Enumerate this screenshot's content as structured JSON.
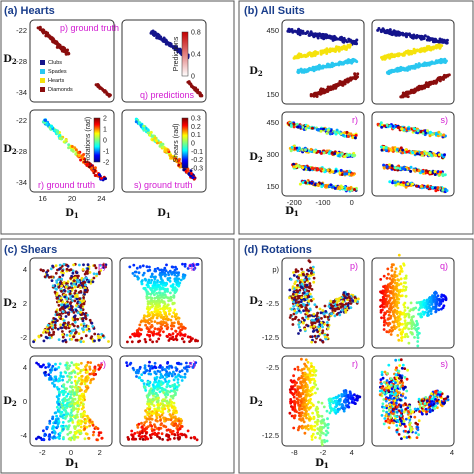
{
  "figure": {
    "colors": {
      "clubs": "#14148c",
      "spades": "#29c7f0",
      "hearts": "#f5e20c",
      "diamonds": "#8b0d0d",
      "tag": "#d21ad2"
    }
  },
  "chart_data": [
    {
      "id": "a",
      "title": "(a) Hearts",
      "type": "scatter",
      "xlabel": "D1",
      "ylabel": "D2",
      "x_ticks": [
        "16",
        "20",
        "24"
      ],
      "y_ticks": [
        "-22",
        "-28",
        "-34"
      ],
      "legend": [
        {
          "key": "clubs",
          "label": "Clubs"
        },
        {
          "key": "spades",
          "label": "Spades"
        },
        {
          "key": "hearts",
          "label": "Hearts"
        },
        {
          "key": "diamonds",
          "label": "Diamonds"
        }
      ],
      "subplots": [
        {
          "tag": "p) ground truth",
          "colorbar": {
            "label": "Predictions",
            "ticks": [
              "0.8",
              "0.4",
              "0"
            ]
          }
        },
        {
          "tag": "q) predictions"
        },
        {
          "tag": "r) ground truth",
          "colorbar": {
            "label": "Rotations (rad)",
            "ticks": [
              "2",
              "1",
              "0",
              "-1",
              "-2"
            ]
          }
        },
        {
          "tag": "s) ground truth",
          "colorbar": {
            "label": "Shears (rad)",
            "ticks": [
              "0.3",
              "0.2",
              "0.1",
              "0",
              "-0.1",
              "-0.2",
              "-0.3"
            ]
          }
        }
      ]
    },
    {
      "id": "b",
      "title": "(b) All Suits",
      "type": "scatter",
      "xlabel": "D1",
      "ylabel": "D2",
      "x_ticks": [
        "-200",
        "-100",
        "0"
      ],
      "y_ticks_top": [
        "450",
        "150"
      ],
      "y_ticks_bottom": [
        "450",
        "300",
        "150"
      ],
      "subplots": [
        {
          "tag": ""
        },
        {
          "tag": ""
        },
        {
          "tag": "r)"
        },
        {
          "tag": "s)"
        }
      ]
    },
    {
      "id": "c",
      "title": "(c) Shears",
      "type": "scatter",
      "xlabel": "D1",
      "ylabel": "D2",
      "x_ticks": [
        "-2",
        "0",
        "2"
      ],
      "y_ticks_top": [
        "4",
        "2",
        "-2"
      ],
      "y_ticks_bottom": [
        "4",
        "0",
        "-4"
      ],
      "subplots": [
        {
          "tag": "p)"
        },
        {
          "tag": "q)"
        },
        {
          "tag": "r)"
        },
        {
          "tag": "s)"
        }
      ]
    },
    {
      "id": "d",
      "title": "(d) Rotations",
      "type": "scatter",
      "xlabel": "D1",
      "ylabel": "D2",
      "x_ticks": [
        "-8",
        "-2",
        "4",
        "4"
      ],
      "y_ticks_top": [
        "p)",
        "-2.5",
        "-12.5"
      ],
      "y_ticks_bottom": [
        "-2.5",
        "-12.5"
      ],
      "subplots": [
        {
          "tag": "p)"
        },
        {
          "tag": "q)"
        },
        {
          "tag": "r)"
        },
        {
          "tag": "s)"
        }
      ]
    }
  ]
}
